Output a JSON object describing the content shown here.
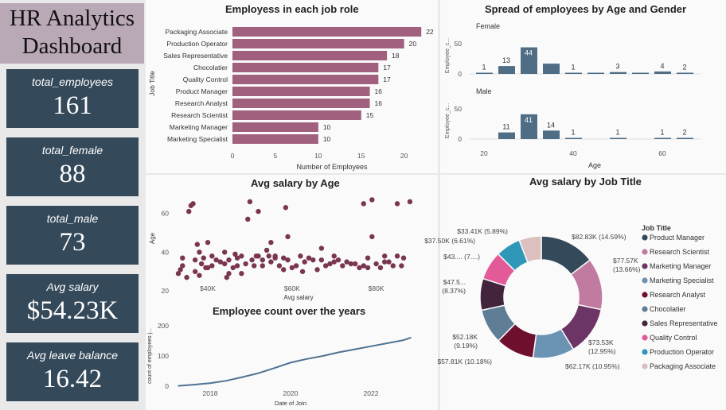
{
  "title": {
    "line1": "HR Analytics",
    "line2": "Dashboard"
  },
  "kpis": [
    {
      "label": "total_employees",
      "value": "161"
    },
    {
      "label": "total_female",
      "value": "88"
    },
    {
      "label": "total_male",
      "value": "73"
    },
    {
      "label": "Avg salary",
      "value": "$54.23K"
    },
    {
      "label": "Avg leave balance",
      "value": "16.42"
    }
  ],
  "colors": {
    "kpi_bg": "#34495a",
    "bar": "#a0607e",
    "dot": "#7a3550",
    "line": "#4f7291",
    "gender_bar": "#4f6d85"
  },
  "chart_data": [
    {
      "type": "bar",
      "title": "Employess in each job role",
      "xlabel": "Number of Employees",
      "ylabel": "Job Title",
      "categories": [
        "Packaging Associate",
        "Production Operator",
        "Sales Representative",
        "Chocolatier",
        "Quality Control",
        "Product Manager",
        "Research Analyst",
        "Research Scientist",
        "Marketing Manager",
        "Marketing Specialist"
      ],
      "values": [
        22,
        20,
        18,
        17,
        17,
        16,
        16,
        15,
        10,
        10
      ],
      "xticks": [
        "0",
        "5",
        "10",
        "15",
        "20"
      ],
      "xlim": [
        0,
        23
      ]
    },
    {
      "type": "bar",
      "title": "Spread of employees by Age and Gender",
      "xlabel": "Age",
      "ylabel": "Employee_c...",
      "xticks": [
        "20",
        "40",
        "60"
      ],
      "yticks": [
        "0",
        "50"
      ],
      "series": [
        {
          "name": "Female",
          "x": [
            20,
            25,
            30,
            35,
            40,
            45,
            50,
            55,
            60,
            65
          ],
          "values": [
            1,
            13,
            44,
            17,
            1,
            1,
            3,
            1,
            4,
            2
          ]
        },
        {
          "name": "Male",
          "x": [
            20,
            25,
            30,
            35,
            40,
            45,
            50,
            55,
            60,
            65
          ],
          "values": [
            0,
            11,
            41,
            14,
            1,
            0,
            1,
            0,
            1,
            2
          ]
        }
      ],
      "labels": {
        "Female": [
          "1",
          "13",
          "44",
          "",
          "1",
          "",
          "3",
          "",
          "4",
          "2"
        ],
        "Male": [
          "",
          "11",
          "41",
          "14",
          "1",
          "",
          "1",
          "",
          "1",
          "2"
        ]
      }
    },
    {
      "type": "scatter",
      "title": "Avg salary by Age",
      "xlabel": "Avg salary",
      "ylabel": "Age",
      "xticks": [
        "$40K",
        "$60K",
        "$80K"
      ],
      "yticks": [
        "20",
        "40",
        "60"
      ],
      "xlim": [
        31000,
        88000
      ],
      "ylim": [
        24,
        70
      ],
      "points": [
        [
          33,
          29
        ],
        [
          33.5,
          31
        ],
        [
          34,
          33
        ],
        [
          34,
          37
        ],
        [
          35,
          27
        ],
        [
          35.5,
          61
        ],
        [
          36,
          64
        ],
        [
          36.5,
          65
        ],
        [
          37,
          30
        ],
        [
          37,
          36
        ],
        [
          37.5,
          44
        ],
        [
          38,
          28
        ],
        [
          38,
          40
        ],
        [
          38.5,
          34
        ],
        [
          39,
          37
        ],
        [
          39.5,
          32
        ],
        [
          40,
          32
        ],
        [
          40,
          45
        ],
        [
          41,
          33
        ],
        [
          41,
          38
        ],
        [
          42,
          36
        ],
        [
          43,
          35
        ],
        [
          44,
          34
        ],
        [
          44,
          40
        ],
        [
          44.5,
          27
        ],
        [
          45,
          36
        ],
        [
          45,
          29
        ],
        [
          46,
          32
        ],
        [
          46.5,
          39
        ],
        [
          47,
          33
        ],
        [
          47,
          37
        ],
        [
          48,
          29
        ],
        [
          48,
          38
        ],
        [
          49,
          34
        ],
        [
          49.5,
          57
        ],
        [
          50,
          66
        ],
        [
          50.5,
          36
        ],
        [
          51,
          33
        ],
        [
          51.5,
          38
        ],
        [
          52,
          38
        ],
        [
          52,
          61
        ],
        [
          53,
          33
        ],
        [
          53,
          36
        ],
        [
          54,
          41
        ],
        [
          54.5,
          38
        ],
        [
          55,
          35
        ],
        [
          55,
          45
        ],
        [
          56,
          37
        ],
        [
          56,
          38
        ],
        [
          57,
          33
        ],
        [
          58,
          31
        ],
        [
          58,
          37
        ],
        [
          58.5,
          63
        ],
        [
          59,
          36
        ],
        [
          59,
          48
        ],
        [
          60,
          32
        ],
        [
          61,
          33
        ],
        [
          62,
          38
        ],
        [
          62.5,
          30
        ],
        [
          63,
          35
        ],
        [
          64,
          37
        ],
        [
          65,
          36
        ],
        [
          66,
          31
        ],
        [
          67,
          36
        ],
        [
          67,
          42
        ],
        [
          68,
          33
        ],
        [
          69,
          34
        ],
        [
          70,
          35
        ],
        [
          70,
          38
        ],
        [
          71,
          36
        ],
        [
          72,
          33
        ],
        [
          73,
          35
        ],
        [
          74,
          34
        ],
        [
          75,
          34
        ],
        [
          76,
          32
        ],
        [
          77,
          33
        ],
        [
          78,
          32
        ],
        [
          78,
          37
        ],
        [
          79,
          48
        ],
        [
          80,
          34
        ],
        [
          81,
          32
        ],
        [
          82,
          35
        ],
        [
          82,
          38
        ],
        [
          83,
          35
        ],
        [
          84,
          33
        ],
        [
          85,
          38
        ],
        [
          86,
          33
        ],
        [
          86.5,
          37
        ],
        [
          77,
          65
        ],
        [
          79,
          67
        ],
        [
          85,
          65
        ],
        [
          88,
          66
        ]
      ]
    },
    {
      "type": "line",
      "title": "Employee count over the years",
      "xlabel": "Date of Join",
      "ylabel": "count of employees j...",
      "xticks": [
        "2018",
        "2020",
        "2022"
      ],
      "yticks": [
        "0",
        "100",
        "200"
      ],
      "x": [
        2017.2,
        2017.6,
        2018.0,
        2018.4,
        2018.8,
        2019.2,
        2019.6,
        2020.0,
        2020.4,
        2020.8,
        2021.2,
        2021.6,
        2022.0,
        2022.4,
        2022.8,
        2023.0
      ],
      "values": [
        1,
        5,
        10,
        18,
        30,
        43,
        60,
        78,
        90,
        100,
        112,
        122,
        132,
        142,
        152,
        161
      ],
      "xlim": [
        2016.7,
        2023.1
      ],
      "ylim": [
        0,
        220
      ]
    },
    {
      "type": "pie",
      "title": "Avg salary by Job Title",
      "legend_title": "Job Title",
      "categories": [
        "Product Manager",
        "Research Scientist",
        "Marketing Manager",
        "Marketing Specialist",
        "Research Analyst",
        "Chocolatier",
        "Sales Representative",
        "Quality Control",
        "Production Operator",
        "Packaging Associate"
      ],
      "values": [
        82.83,
        77.57,
        73.53,
        62.17,
        57.81,
        52.18,
        47.5,
        43.0,
        37.5,
        33.41
      ],
      "percentages": [
        14.59,
        13.66,
        12.95,
        10.95,
        10.18,
        9.19,
        8.37,
        7.57,
        6.61,
        5.89
      ],
      "slice_colors": [
        "#34495a",
        "#c27ba0",
        "#6d3466",
        "#6b93b3",
        "#6e0f2d",
        "#5f7d94",
        "#43243d",
        "#e25a98",
        "#2f98b8",
        "#dcbfbf"
      ],
      "labels": [
        "$82.83K (14.59%)",
        "$77.57K (13.66%)",
        "$73.53K (12.95%)",
        "$62.17K (10.95%)",
        "$57.81K (10.18%)",
        "$52.18K (9.19%)",
        "$47.5... (8.37%)",
        "$43.... (7....)",
        "$37.50K (6.61%)",
        "$33.41K (5.89%)"
      ]
    }
  ]
}
